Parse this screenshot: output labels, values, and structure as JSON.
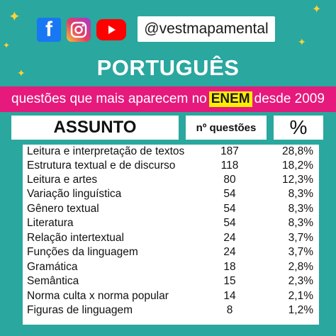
{
  "colors": {
    "background": "#2aa79e",
    "band": "#e6197c",
    "highlight": "#ffee00"
  },
  "social": {
    "icons": [
      "facebook-icon",
      "instagram-icon",
      "youtube-icon"
    ],
    "handle": "@vestmapamental"
  },
  "title": "PORTUGUÊS",
  "subtitle": {
    "before": "questões que mais aparecem no",
    "highlight": "ENEM",
    "after": "desde 2009"
  },
  "table": {
    "headers": {
      "subject": "ASSUNTO",
      "questions": "nº questões",
      "percent": "%"
    },
    "rows": [
      {
        "subject": "Leitura e interpretação de textos",
        "questions": "187",
        "percent": "28,8%"
      },
      {
        "subject": "Estrutura textual e de discurso",
        "questions": "118",
        "percent": "18,2%"
      },
      {
        "subject": "Leitura e artes",
        "questions": "80",
        "percent": "12,3%"
      },
      {
        "subject": "Variação linguística",
        "questions": "54",
        "percent": "8,3%"
      },
      {
        "subject": "Gênero textual",
        "questions": "54",
        "percent": "8,3%"
      },
      {
        "subject": "Literatura",
        "questions": "54",
        "percent": "8,3%"
      },
      {
        "subject": "Relação intertextual",
        "questions": "24",
        "percent": "3,7%"
      },
      {
        "subject": "Funções da linguagem",
        "questions": "24",
        "percent": "3,7%"
      },
      {
        "subject": "Gramática",
        "questions": "18",
        "percent": "2,8%"
      },
      {
        "subject": "Semântica",
        "questions": "15",
        "percent": "2,3%"
      },
      {
        "subject": "Norma culta x norma popular",
        "questions": "14",
        "percent": "2,1%"
      },
      {
        "subject": "Figuras de linguagem",
        "questions": "8",
        "percent": "1,2%"
      }
    ]
  }
}
